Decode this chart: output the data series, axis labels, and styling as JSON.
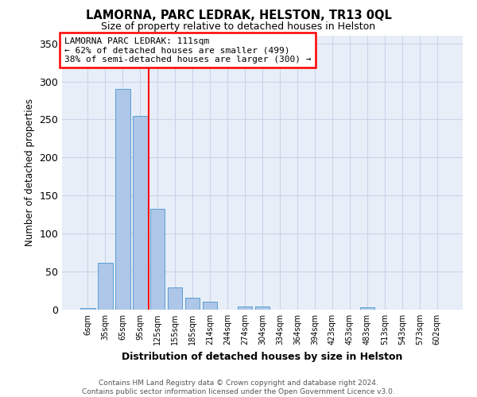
{
  "title": "LAMORNA, PARC LEDRAK, HELSTON, TR13 0QL",
  "subtitle": "Size of property relative to detached houses in Helston",
  "xlabel": "Distribution of detached houses by size in Helston",
  "ylabel": "Number of detached properties",
  "footer_line1": "Contains HM Land Registry data © Crown copyright and database right 2024.",
  "footer_line2": "Contains public sector information licensed under the Open Government Licence v3.0.",
  "bins": [
    "6sqm",
    "35sqm",
    "65sqm",
    "95sqm",
    "125sqm",
    "155sqm",
    "185sqm",
    "214sqm",
    "244sqm",
    "274sqm",
    "304sqm",
    "334sqm",
    "364sqm",
    "394sqm",
    "423sqm",
    "453sqm",
    "483sqm",
    "513sqm",
    "543sqm",
    "573sqm",
    "602sqm"
  ],
  "values": [
    2,
    62,
    290,
    255,
    133,
    29,
    16,
    10,
    0,
    4,
    4,
    0,
    0,
    0,
    0,
    0,
    3,
    0,
    0,
    0,
    0
  ],
  "bar_color": "#aec6e8",
  "bar_edge_color": "#5a9fd4",
  "red_line_label": "LAMORNA PARC LEDRAK: 111sqm",
  "annotation_line2": "← 62% of detached houses are smaller (499)",
  "annotation_line3": "38% of semi-detached houses are larger (300) →",
  "annotation_box_color": "white",
  "annotation_box_edge_color": "red",
  "ylim": [
    0,
    360
  ],
  "yticks": [
    0,
    50,
    100,
    150,
    200,
    250,
    300,
    350
  ],
  "grid_color": "#c8d4e8",
  "background_color": "#e8eef8"
}
